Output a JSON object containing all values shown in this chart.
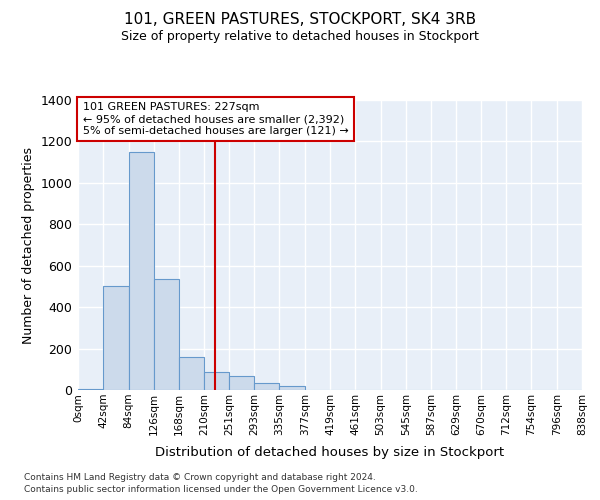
{
  "title": "101, GREEN PASTURES, STOCKPORT, SK4 3RB",
  "subtitle": "Size of property relative to detached houses in Stockport",
  "xlabel": "Distribution of detached houses by size in Stockport",
  "ylabel": "Number of detached properties",
  "footer1": "Contains HM Land Registry data © Crown copyright and database right 2024.",
  "footer2": "Contains public sector information licensed under the Open Government Licence v3.0.",
  "bin_edges": [
    0,
    42,
    84,
    126,
    168,
    210,
    251,
    293,
    335,
    377,
    419,
    461,
    503,
    545,
    587,
    629,
    670,
    712,
    754,
    796,
    838
  ],
  "bar_heights": [
    5,
    500,
    1150,
    535,
    160,
    85,
    70,
    35,
    20,
    0,
    0,
    0,
    0,
    0,
    0,
    0,
    0,
    0,
    0,
    0
  ],
  "bar_color": "#ccdaeb",
  "bar_edgecolor": "#6699cc",
  "property_size": 227,
  "vline_color": "#cc0000",
  "annotation_line1": "101 GREEN PASTURES: 227sqm",
  "annotation_line2": "← 95% of detached houses are smaller (2,392)",
  "annotation_line3": "5% of semi-detached houses are larger (121) →",
  "annotation_box_facecolor": "#ffffff",
  "annotation_box_edgecolor": "#cc0000",
  "ylim": [
    0,
    1400
  ],
  "yticks": [
    0,
    200,
    400,
    600,
    800,
    1000,
    1200,
    1400
  ],
  "bg_color": "#ffffff",
  "plot_bg_color": "#e8eff8",
  "grid_color": "#ffffff",
  "tick_labels": [
    "0sqm",
    "42sqm",
    "84sqm",
    "126sqm",
    "168sqm",
    "210sqm",
    "251sqm",
    "293sqm",
    "335sqm",
    "377sqm",
    "419sqm",
    "461sqm",
    "503sqm",
    "545sqm",
    "587sqm",
    "629sqm",
    "670sqm",
    "712sqm",
    "754sqm",
    "796sqm",
    "838sqm"
  ]
}
